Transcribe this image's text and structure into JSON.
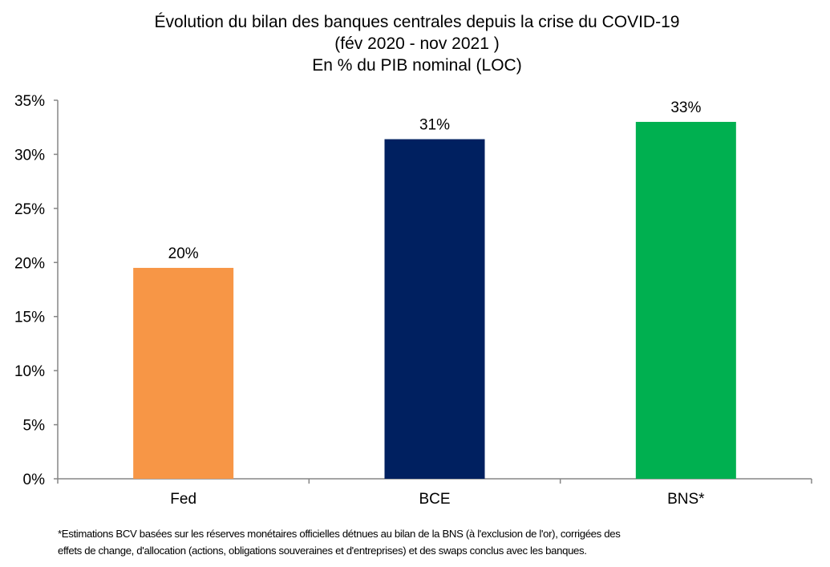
{
  "chart_data": {
    "type": "bar",
    "title": [
      "Évolution du bilan des banques centrales depuis la crise du COVID-19",
      "(fév 2020 - nov 2021 )",
      "En % du PIB nominal (LOC)"
    ],
    "categories": [
      "Fed",
      "BCE",
      "BNS*"
    ],
    "values": [
      19.5,
      31.4,
      33.0
    ],
    "data_labels": [
      "20%",
      "31%",
      "33%"
    ],
    "colors": [
      "#F79646",
      "#002060",
      "#00B050"
    ],
    "ylim": [
      0,
      35
    ],
    "yticks": [
      0,
      5,
      10,
      15,
      20,
      25,
      30,
      35
    ],
    "ytick_labels": [
      "0%",
      "5%",
      "10%",
      "15%",
      "20%",
      "25%",
      "30%",
      "35%"
    ],
    "xlabel": "",
    "ylabel": "",
    "grid": false,
    "legend": "none"
  },
  "footnote": [
    "*Estimations BCV basées sur les réserves monétaires officielles détnues au bilan de la BNS (à l'exclusion de l'or), corrigées des",
    "effets de change, d'allocation (actions, obligations souveraines et d'entreprises) et des swaps conclus avec les banques."
  ]
}
